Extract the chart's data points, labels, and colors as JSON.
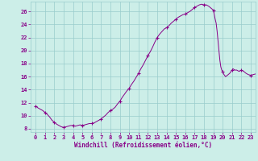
{
  "detailed_points": [
    [
      0,
      11.5
    ],
    [
      0.25,
      11.2
    ],
    [
      0.5,
      11.0
    ],
    [
      0.75,
      10.8
    ],
    [
      1,
      10.5
    ],
    [
      1.25,
      10.2
    ],
    [
      1.5,
      9.8
    ],
    [
      1.75,
      9.3
    ],
    [
      2,
      9.0
    ],
    [
      2.25,
      8.7
    ],
    [
      2.5,
      8.5
    ],
    [
      2.75,
      8.3
    ],
    [
      3,
      8.2
    ],
    [
      3.25,
      8.3
    ],
    [
      3.5,
      8.4
    ],
    [
      3.75,
      8.5
    ],
    [
      4,
      8.5
    ],
    [
      4.25,
      8.4
    ],
    [
      4.5,
      8.5
    ],
    [
      4.75,
      8.6
    ],
    [
      5,
      8.5
    ],
    [
      5.25,
      8.6
    ],
    [
      5.5,
      8.7
    ],
    [
      5.75,
      8.8
    ],
    [
      6,
      8.8
    ],
    [
      6.25,
      8.9
    ],
    [
      6.5,
      9.1
    ],
    [
      6.75,
      9.3
    ],
    [
      7,
      9.5
    ],
    [
      7.25,
      9.8
    ],
    [
      7.5,
      10.1
    ],
    [
      7.75,
      10.5
    ],
    [
      8,
      10.8
    ],
    [
      8.25,
      11.0
    ],
    [
      8.5,
      11.3
    ],
    [
      8.75,
      11.8
    ],
    [
      9,
      12.2
    ],
    [
      9.25,
      12.8
    ],
    [
      9.5,
      13.3
    ],
    [
      9.75,
      13.8
    ],
    [
      10,
      14.2
    ],
    [
      10.25,
      14.8
    ],
    [
      10.5,
      15.3
    ],
    [
      10.75,
      15.9
    ],
    [
      11,
      16.5
    ],
    [
      11.25,
      17.2
    ],
    [
      11.5,
      17.8
    ],
    [
      11.75,
      18.5
    ],
    [
      12,
      19.2
    ],
    [
      12.25,
      19.8
    ],
    [
      12.5,
      20.5
    ],
    [
      12.75,
      21.3
    ],
    [
      13,
      22.0
    ],
    [
      13.25,
      22.5
    ],
    [
      13.5,
      22.9
    ],
    [
      13.75,
      23.3
    ],
    [
      14,
      23.5
    ],
    [
      14.25,
      23.8
    ],
    [
      14.5,
      24.2
    ],
    [
      14.75,
      24.5
    ],
    [
      15,
      24.8
    ],
    [
      15.25,
      25.1
    ],
    [
      15.5,
      25.3
    ],
    [
      15.75,
      25.5
    ],
    [
      16,
      25.6
    ],
    [
      16.25,
      25.8
    ],
    [
      16.5,
      26.0
    ],
    [
      16.75,
      26.3
    ],
    [
      17,
      26.6
    ],
    [
      17.25,
      26.8
    ],
    [
      17.5,
      27.0
    ],
    [
      17.75,
      27.1
    ],
    [
      18,
      27.0
    ],
    [
      18.25,
      27.0
    ],
    [
      18.5,
      26.8
    ],
    [
      18.75,
      26.5
    ],
    [
      19,
      26.2
    ],
    [
      19.1,
      25.5
    ],
    [
      19.2,
      24.8
    ],
    [
      19.3,
      24.2
    ],
    [
      19.4,
      23.0
    ],
    [
      19.5,
      21.5
    ],
    [
      19.6,
      20.0
    ],
    [
      19.7,
      18.5
    ],
    [
      19.8,
      17.5
    ],
    [
      19.9,
      17.0
    ],
    [
      20,
      16.8
    ],
    [
      20.1,
      16.4
    ],
    [
      20.2,
      16.2
    ],
    [
      20.3,
      16.0
    ],
    [
      20.5,
      16.2
    ],
    [
      20.75,
      16.5
    ],
    [
      21,
      17.0
    ],
    [
      21.1,
      17.2
    ],
    [
      21.2,
      17.1
    ],
    [
      21.3,
      17.0
    ],
    [
      21.5,
      17.0
    ],
    [
      21.75,
      16.8
    ],
    [
      22,
      17.0
    ],
    [
      22.25,
      16.8
    ],
    [
      22.5,
      16.5
    ],
    [
      22.75,
      16.3
    ],
    [
      23,
      16.2
    ],
    [
      23.25,
      16.3
    ],
    [
      23.5,
      16.4
    ]
  ],
  "marker_x": [
    0,
    1,
    2,
    3,
    4,
    5,
    6,
    7,
    8,
    9,
    10,
    11,
    12,
    13,
    14,
    15,
    16,
    17,
    18,
    19,
    20,
    21,
    22,
    23
  ],
  "marker_y": [
    11.5,
    10.5,
    9.0,
    8.2,
    8.5,
    8.5,
    8.8,
    9.5,
    10.8,
    12.2,
    14.2,
    16.5,
    19.2,
    22.0,
    23.5,
    24.8,
    25.6,
    26.6,
    27.0,
    26.2,
    16.8,
    17.0,
    17.0,
    16.2
  ],
  "line_color": "#880088",
  "marker_color": "#880088",
  "bg_color": "#cceee8",
  "grid_color": "#99cccc",
  "xlabel": "Windchill (Refroidissement éolien,°C)",
  "ylim": [
    7.5,
    27.5
  ],
  "xlim": [
    -0.5,
    23.5
  ],
  "yticks": [
    8,
    10,
    12,
    14,
    16,
    18,
    20,
    22,
    24,
    26
  ],
  "xticks": [
    0,
    1,
    2,
    3,
    4,
    5,
    6,
    7,
    8,
    9,
    10,
    11,
    12,
    13,
    14,
    15,
    16,
    17,
    18,
    19,
    20,
    21,
    22,
    23
  ],
  "label_color": "#880088",
  "tick_fontsize": 5.0,
  "xlabel_fontsize": 5.5
}
